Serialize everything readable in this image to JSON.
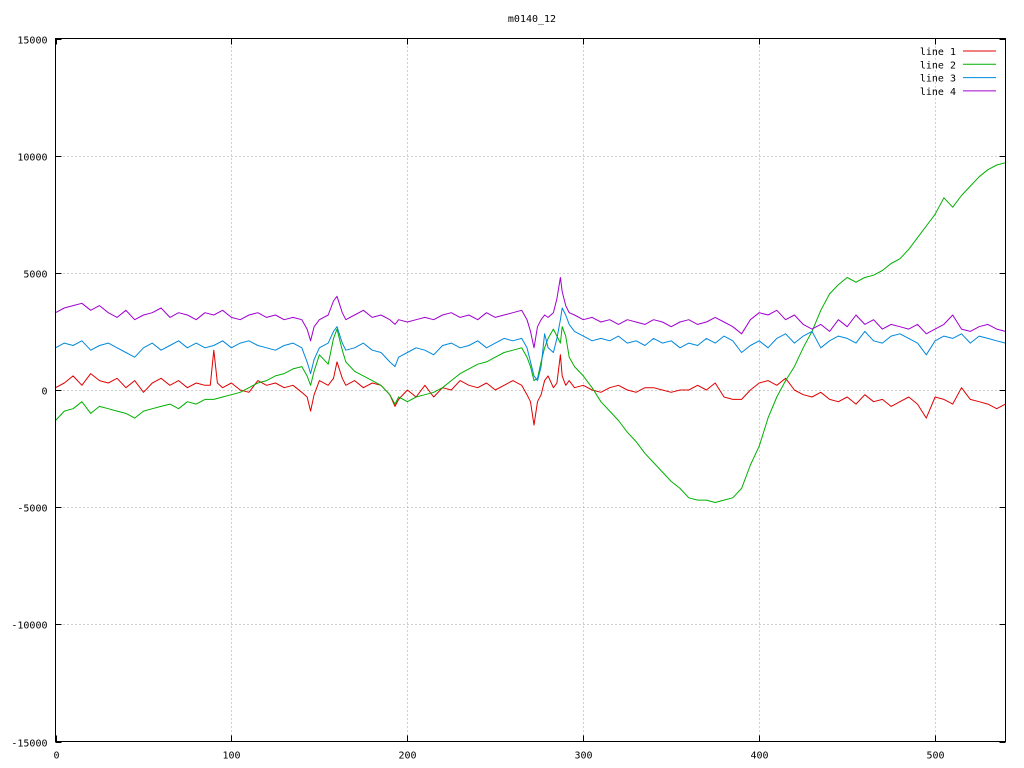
{
  "chart_data": {
    "type": "line",
    "title": "m0140_12",
    "xlabel": "",
    "ylabel": "",
    "xlim": [
      0,
      540
    ],
    "ylim": [
      -15000,
      15000
    ],
    "x_ticks": [
      0,
      100,
      200,
      300,
      400,
      500
    ],
    "y_ticks": [
      -15000,
      -10000,
      -5000,
      0,
      5000,
      10000,
      15000
    ],
    "grid": true,
    "legend_position": "top-right",
    "series": [
      {
        "name": "line 1",
        "color": "#e00000",
        "x": [
          0,
          5,
          10,
          15,
          20,
          25,
          30,
          35,
          40,
          45,
          50,
          55,
          60,
          65,
          70,
          75,
          80,
          85,
          88,
          90,
          92,
          95,
          100,
          105,
          110,
          115,
          120,
          125,
          130,
          135,
          140,
          143,
          145,
          147,
          150,
          155,
          158,
          160,
          163,
          165,
          170,
          175,
          180,
          185,
          190,
          193,
          195,
          200,
          205,
          210,
          215,
          220,
          225,
          230,
          235,
          240,
          245,
          250,
          255,
          260,
          265,
          268,
          270,
          272,
          274,
          276,
          278,
          280,
          283,
          285,
          287,
          288,
          290,
          292,
          295,
          300,
          305,
          310,
          315,
          320,
          325,
          330,
          335,
          340,
          345,
          350,
          355,
          360,
          365,
          370,
          375,
          380,
          385,
          390,
          395,
          400,
          405,
          410,
          415,
          420,
          425,
          430,
          435,
          440,
          445,
          450,
          455,
          460,
          465,
          470,
          475,
          480,
          485,
          490,
          495,
          500,
          505,
          510,
          515,
          520,
          525,
          530,
          535,
          540
        ],
        "values": [
          100,
          300,
          600,
          200,
          700,
          400,
          300,
          500,
          100,
          400,
          -100,
          300,
          500,
          200,
          400,
          100,
          300,
          200,
          200,
          1700,
          300,
          100,
          300,
          0,
          -100,
          400,
          200,
          300,
          100,
          200,
          -100,
          -300,
          -900,
          -200,
          400,
          200,
          500,
          1200,
          500,
          200,
          400,
          100,
          300,
          200,
          -200,
          -700,
          -400,
          0,
          -300,
          200,
          -300,
          100,
          0,
          400,
          200,
          100,
          300,
          0,
          200,
          400,
          200,
          -200,
          -500,
          -1500,
          -500,
          -200,
          400,
          600,
          100,
          300,
          1500,
          600,
          200,
          400,
          100,
          200,
          0,
          -100,
          100,
          200,
          0,
          -100,
          100,
          100,
          0,
          -100,
          0,
          0,
          200,
          0,
          300,
          -300,
          -400,
          -400,
          0,
          300,
          400,
          200,
          500,
          0,
          -200,
          -300,
          -100,
          -400,
          -500,
          -300,
          -600,
          -200,
          -500,
          -400,
          -700,
          -500,
          -300,
          -600,
          -1200,
          -300,
          -400,
          -600,
          100,
          -400,
          -500,
          -600,
          -800,
          -600
        ]
      },
      {
        "name": "line 2",
        "color": "#00b000",
        "x": [
          0,
          5,
          10,
          15,
          20,
          25,
          30,
          35,
          40,
          45,
          50,
          55,
          60,
          65,
          70,
          75,
          80,
          85,
          90,
          95,
          100,
          105,
          110,
          115,
          120,
          125,
          130,
          135,
          140,
          143,
          145,
          147,
          150,
          155,
          158,
          160,
          163,
          165,
          170,
          175,
          180,
          185,
          190,
          193,
          195,
          200,
          205,
          210,
          215,
          220,
          225,
          230,
          235,
          240,
          245,
          250,
          255,
          260,
          265,
          268,
          270,
          272,
          274,
          276,
          278,
          280,
          283,
          285,
          287,
          288,
          290,
          292,
          295,
          300,
          305,
          310,
          315,
          320,
          325,
          330,
          335,
          340,
          345,
          350,
          355,
          360,
          365,
          370,
          375,
          380,
          385,
          390,
          395,
          400,
          405,
          410,
          415,
          420,
          425,
          430,
          435,
          440,
          445,
          450,
          455,
          460,
          465,
          470,
          475,
          480,
          485,
          490,
          495,
          500,
          505,
          510,
          515,
          520,
          525,
          530,
          535,
          540
        ],
        "values": [
          -1300,
          -900,
          -800,
          -500,
          -1000,
          -700,
          -800,
          -900,
          -1000,
          -1200,
          -900,
          -800,
          -700,
          -600,
          -800,
          -500,
          -600,
          -400,
          -400,
          -300,
          -200,
          -100,
          100,
          300,
          400,
          600,
          700,
          900,
          1000,
          600,
          200,
          800,
          1500,
          1100,
          2200,
          2600,
          1700,
          1200,
          800,
          600,
          400,
          200,
          -200,
          -600,
          -300,
          -500,
          -300,
          -200,
          -100,
          100,
          400,
          700,
          900,
          1100,
          1200,
          1400,
          1600,
          1700,
          1800,
          1400,
          1000,
          400,
          500,
          1200,
          1800,
          2200,
          2600,
          2300,
          2000,
          2700,
          2300,
          1400,
          1000,
          600,
          100,
          -500,
          -900,
          -1300,
          -1800,
          -2200,
          -2700,
          -3100,
          -3500,
          -3900,
          -4200,
          -4600,
          -4700,
          -4700,
          -4800,
          -4700,
          -4600,
          -4200,
          -3200,
          -2400,
          -1200,
          -300,
          400,
          1000,
          1800,
          2500,
          3400,
          4100,
          4500,
          4800,
          4600,
          4800,
          4900,
          5100,
          5400,
          5600,
          6000,
          6500,
          7000,
          7500,
          8200,
          7800,
          8300,
          8700,
          9100,
          9400,
          9600,
          9700
        ]
      },
      {
        "name": "line 3",
        "color": "#0088dd",
        "x": [
          0,
          5,
          10,
          15,
          20,
          25,
          30,
          35,
          40,
          45,
          50,
          55,
          60,
          65,
          70,
          75,
          80,
          85,
          90,
          95,
          100,
          105,
          110,
          115,
          120,
          125,
          130,
          135,
          140,
          143,
          145,
          147,
          150,
          155,
          158,
          160,
          163,
          165,
          170,
          175,
          180,
          185,
          190,
          193,
          195,
          200,
          205,
          210,
          215,
          220,
          225,
          230,
          235,
          240,
          245,
          250,
          255,
          260,
          265,
          268,
          270,
          272,
          274,
          276,
          278,
          280,
          283,
          285,
          287,
          288,
          290,
          292,
          295,
          300,
          305,
          310,
          315,
          320,
          325,
          330,
          335,
          340,
          345,
          350,
          355,
          360,
          365,
          370,
          375,
          380,
          385,
          390,
          395,
          400,
          405,
          410,
          415,
          420,
          425,
          430,
          435,
          440,
          445,
          450,
          455,
          460,
          465,
          470,
          475,
          480,
          485,
          490,
          495,
          500,
          505,
          510,
          515,
          520,
          525,
          530,
          535,
          540
        ],
        "values": [
          1800,
          2000,
          1900,
          2100,
          1700,
          1900,
          2000,
          1800,
          1600,
          1400,
          1800,
          2000,
          1700,
          1900,
          2100,
          1800,
          2000,
          1800,
          1900,
          2100,
          1800,
          2000,
          2100,
          1900,
          1800,
          1700,
          1900,
          2000,
          1800,
          1200,
          700,
          1300,
          1800,
          2000,
          2500,
          2700,
          2000,
          1700,
          1800,
          2000,
          1700,
          1600,
          1200,
          1000,
          1400,
          1600,
          1800,
          1700,
          1500,
          1900,
          2000,
          1800,
          1900,
          2100,
          1800,
          2000,
          2200,
          2100,
          2200,
          1800,
          1200,
          600,
          400,
          1000,
          2400,
          1800,
          1600,
          2200,
          3000,
          3500,
          3200,
          2800,
          2500,
          2300,
          2100,
          2200,
          2100,
          2300,
          2000,
          2100,
          1900,
          2200,
          2000,
          2100,
          1800,
          2000,
          1900,
          2200,
          2000,
          2300,
          2100,
          1600,
          1900,
          2100,
          1800,
          2200,
          2400,
          2000,
          2300,
          2500,
          1800,
          2100,
          2300,
          2200,
          2000,
          2500,
          2100,
          2000,
          2300,
          2400,
          2200,
          2000,
          1500,
          2100,
          2300,
          2200,
          2400,
          2000,
          2300,
          2200,
          2100,
          2000
        ]
      },
      {
        "name": "line 4",
        "color": "#a000d0",
        "x": [
          0,
          5,
          10,
          15,
          20,
          25,
          30,
          35,
          40,
          45,
          50,
          55,
          60,
          65,
          70,
          75,
          80,
          85,
          90,
          95,
          100,
          105,
          110,
          115,
          120,
          125,
          130,
          135,
          140,
          143,
          145,
          147,
          150,
          155,
          158,
          160,
          163,
          165,
          170,
          175,
          180,
          185,
          190,
          193,
          195,
          200,
          205,
          210,
          215,
          220,
          225,
          230,
          235,
          240,
          245,
          250,
          255,
          260,
          265,
          268,
          270,
          272,
          274,
          276,
          278,
          280,
          283,
          285,
          287,
          288,
          290,
          292,
          295,
          300,
          305,
          310,
          315,
          320,
          325,
          330,
          335,
          340,
          345,
          350,
          355,
          360,
          365,
          370,
          375,
          380,
          385,
          390,
          395,
          400,
          405,
          410,
          415,
          420,
          425,
          430,
          435,
          440,
          445,
          450,
          455,
          460,
          465,
          470,
          475,
          480,
          485,
          490,
          495,
          500,
          505,
          510,
          515,
          520,
          525,
          530,
          535,
          540
        ],
        "values": [
          3300,
          3500,
          3600,
          3700,
          3400,
          3600,
          3300,
          3100,
          3400,
          3000,
          3200,
          3300,
          3500,
          3100,
          3300,
          3200,
          3000,
          3300,
          3200,
          3400,
          3100,
          3000,
          3200,
          3300,
          3100,
          3200,
          3000,
          3100,
          3000,
          2600,
          2100,
          2700,
          3000,
          3200,
          3800,
          4000,
          3300,
          3000,
          3200,
          3400,
          3100,
          3200,
          3000,
          2800,
          3000,
          2900,
          3000,
          3100,
          3000,
          3200,
          3300,
          3100,
          3200,
          3000,
          3300,
          3100,
          3200,
          3300,
          3400,
          3000,
          2500,
          1800,
          2700,
          3000,
          3200,
          3100,
          3300,
          3900,
          4800,
          4200,
          3600,
          3300,
          3200,
          3000,
          3100,
          2900,
          3000,
          2800,
          3000,
          2900,
          2800,
          3000,
          2900,
          2700,
          2900,
          3000,
          2800,
          2900,
          3100,
          2900,
          2700,
          2400,
          3000,
          3300,
          3200,
          3400,
          3000,
          3200,
          2800,
          2600,
          2800,
          2500,
          3000,
          2700,
          3200,
          2800,
          3000,
          2600,
          2800,
          2700,
          2600,
          2800,
          2400,
          2600,
          2800,
          3200,
          2600,
          2500,
          2700,
          2800,
          2600,
          2500
        ]
      }
    ]
  }
}
